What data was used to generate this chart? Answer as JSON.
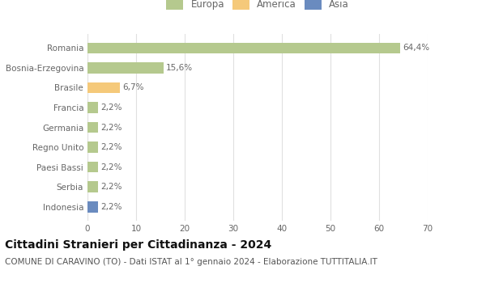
{
  "categories": [
    "Romania",
    "Bosnia-Erzegovina",
    "Brasile",
    "Francia",
    "Germania",
    "Regno Unito",
    "Paesi Bassi",
    "Serbia",
    "Indonesia"
  ],
  "values": [
    64.4,
    15.6,
    6.7,
    2.2,
    2.2,
    2.2,
    2.2,
    2.2,
    2.2
  ],
  "labels": [
    "64,4%",
    "15,6%",
    "6,7%",
    "2,2%",
    "2,2%",
    "2,2%",
    "2,2%",
    "2,2%",
    "2,2%"
  ],
  "colors": [
    "#b5c98e",
    "#b5c98e",
    "#f5c97a",
    "#b5c98e",
    "#b5c98e",
    "#b5c98e",
    "#b5c98e",
    "#b5c98e",
    "#6a8bbf"
  ],
  "legend": [
    {
      "label": "Europa",
      "color": "#b5c98e"
    },
    {
      "label": "America",
      "color": "#f5c97a"
    },
    {
      "label": "Asia",
      "color": "#6a8bbf"
    }
  ],
  "xlim": [
    0,
    70
  ],
  "xticks": [
    0,
    10,
    20,
    30,
    40,
    50,
    60,
    70
  ],
  "title": "Cittadini Stranieri per Cittadinanza - 2024",
  "subtitle": "COMUNE DI CARAVINO (TO) - Dati ISTAT al 1° gennaio 2024 - Elaborazione TUTTITALIA.IT",
  "background_color": "#ffffff",
  "grid_color": "#e0e0e0",
  "bar_height": 0.55,
  "title_fontsize": 10,
  "subtitle_fontsize": 7.5,
  "label_fontsize": 7.5,
  "tick_fontsize": 7.5,
  "legend_fontsize": 8.5
}
